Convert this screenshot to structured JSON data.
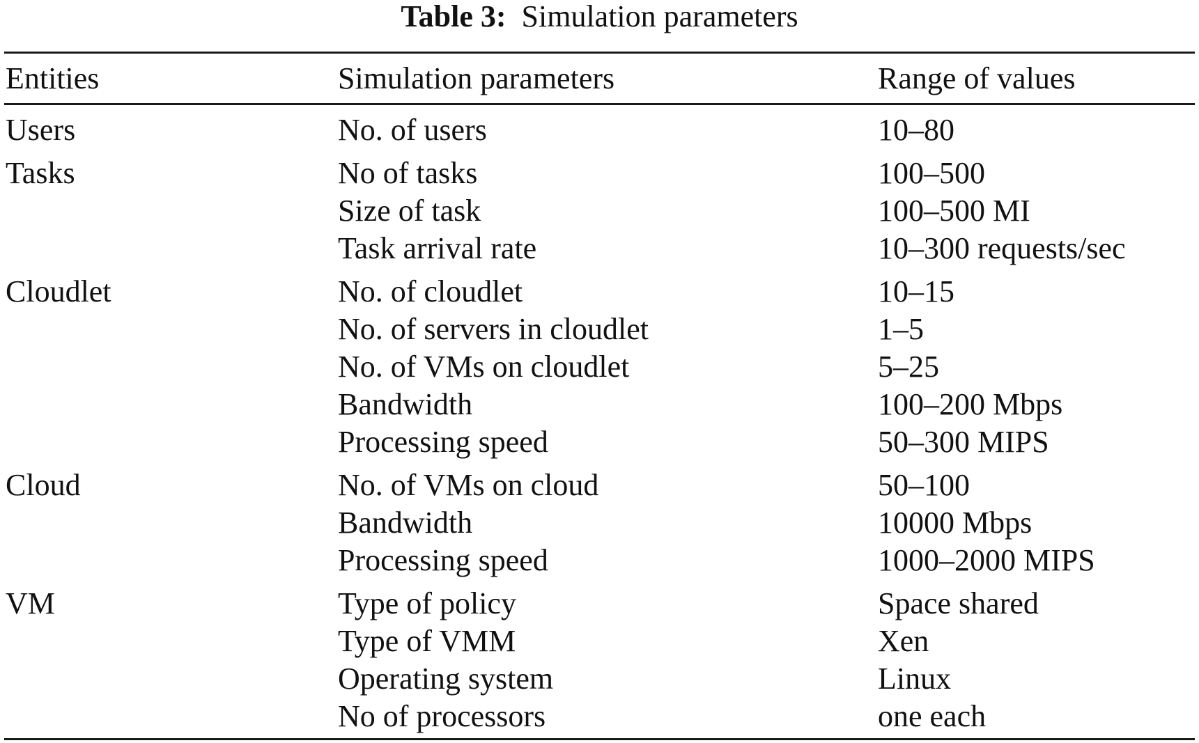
{
  "caption": {
    "label": "Table 3:",
    "title": "Simulation parameters"
  },
  "header": {
    "entities": "Entities",
    "parameters": "Simulation parameters",
    "range": "Range of values"
  },
  "rows": [
    {
      "entity": "Users",
      "parameter": "No. of users",
      "value": "10–80"
    },
    {
      "entity": "Tasks",
      "parameter": "No of tasks",
      "value": "100–500"
    },
    {
      "entity": "",
      "parameter": "Size of task",
      "value": "100–500 MI"
    },
    {
      "entity": "",
      "parameter": "Task arrival rate",
      "value": "10–300 requests/sec"
    },
    {
      "entity": "Cloudlet",
      "parameter": "No. of cloudlet",
      "value": "10–15"
    },
    {
      "entity": "",
      "parameter": "No. of servers in cloudlet",
      "value": "1–5"
    },
    {
      "entity": "",
      "parameter": "No. of VMs on cloudlet",
      "value": "5–25"
    },
    {
      "entity": "",
      "parameter": "Bandwidth",
      "value": "100–200 Mbps"
    },
    {
      "entity": "",
      "parameter": "Processing speed",
      "value": "50–300 MIPS"
    },
    {
      "entity": "Cloud",
      "parameter": "No. of VMs on cloud",
      "value": "50–100"
    },
    {
      "entity": "",
      "parameter": "Bandwidth",
      "value": "10000 Mbps"
    },
    {
      "entity": "",
      "parameter": "Processing speed",
      "value": "1000–2000 MIPS"
    },
    {
      "entity": "VM",
      "parameter": "Type of policy",
      "value": "Space shared"
    },
    {
      "entity": "",
      "parameter": "Type of VMM",
      "value": "Xen"
    },
    {
      "entity": "",
      "parameter": "Operating system",
      "value": "Linux"
    },
    {
      "entity": "",
      "parameter": "No of processors",
      "value": "one each"
    }
  ]
}
